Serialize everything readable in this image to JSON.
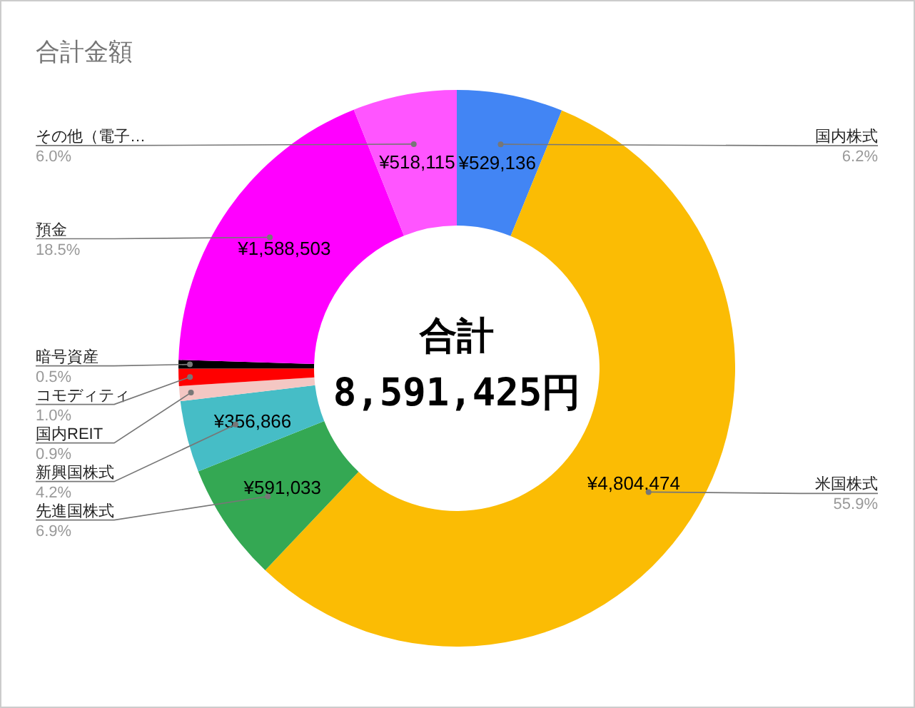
{
  "chart_data": {
    "type": "donut",
    "title": "合計金額",
    "categories": [
      "国内株式",
      "米国株式",
      "先進国株式",
      "新興国株式",
      "国内REIT",
      "コモディティ",
      "暗号資産",
      "預金",
      "その他（電子…"
    ],
    "values": [
      529136,
      4804474,
      591033,
      356866,
      74298,
      86000,
      43000,
      1588503,
      518115
    ],
    "colors": [
      "#4285f4",
      "#fbbc04",
      "#34a853",
      "#46bdc6",
      "#f4c7c3",
      "#ff0000",
      "#000000",
      "#ff00ff",
      "#ff55ff"
    ],
    "value_labels": [
      "¥529,136",
      "¥4,804,474",
      "¥591,033",
      "¥356,866",
      null,
      null,
      null,
      "¥1,588,503",
      "¥518,115"
    ],
    "annotations": [
      "合計",
      "8,591,425円",
      {
        "text": "6.2%",
        "x": "国内株式"
      },
      {
        "text": "55.9%",
        "x": "米国株式"
      },
      {
        "text": "6.9%",
        "x": "先進国株式"
      },
      {
        "text": "4.2%",
        "x": "新興国株式"
      },
      {
        "text": "0.9%",
        "x": "国内REIT"
      },
      {
        "text": "1.0%",
        "x": "コモディティ"
      },
      {
        "text": "0.5%",
        "x": "暗号資産"
      },
      {
        "text": "18.5%",
        "x": "預金"
      },
      {
        "text": "6.0%",
        "x": "その他（電子…"
      }
    ]
  }
}
